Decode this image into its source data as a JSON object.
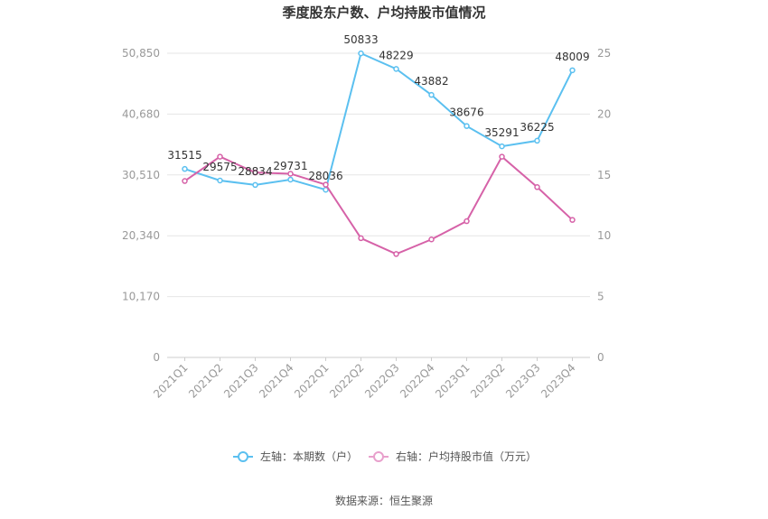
{
  "chart_data": {
    "type": "line",
    "title": "季度股东户数、户均持股市值情况",
    "categories": [
      "2021Q1",
      "2021Q2",
      "2021Q3",
      "2021Q4",
      "2022Q1",
      "2022Q2",
      "2022Q3",
      "2022Q4",
      "2023Q1",
      "2023Q2",
      "2023Q3",
      "2023Q4"
    ],
    "left_axis": {
      "min": 0,
      "max": 50850,
      "ticks": [
        "0",
        "10,170",
        "20,340",
        "30,510",
        "40,680",
        "50,850"
      ]
    },
    "right_axis": {
      "min": 0,
      "max": 25,
      "ticks": [
        "0",
        "5",
        "10",
        "15",
        "20",
        "25"
      ]
    },
    "series": [
      {
        "name": "左轴：本期数（户）",
        "axis": "left",
        "color": "#5bc0f0",
        "values": [
          31515,
          29575,
          28834,
          29731,
          28036,
          50833,
          48229,
          43882,
          38676,
          35291,
          36225,
          48009
        ],
        "labels": [
          "31515",
          "29575",
          "28834",
          "29731",
          "28036",
          "50833",
          "48229",
          "43882",
          "38676",
          "35291",
          "36225",
          "48009"
        ]
      },
      {
        "name": "右轴：户均持股市值（万元）",
        "axis": "right",
        "color": "#d662a8",
        "values": [
          14.5,
          16.5,
          15.2,
          15.1,
          14.2,
          9.8,
          8.5,
          9.7,
          11.2,
          16.5,
          14.0,
          11.3
        ]
      }
    ],
    "grid": true,
    "legend": "bottom-center"
  },
  "source": "数据来源：恒生聚源"
}
